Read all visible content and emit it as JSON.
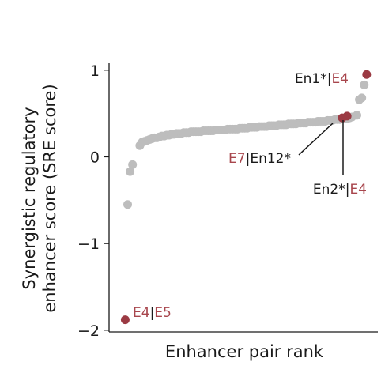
{
  "chart_data": {
    "type": "scatter",
    "xlabel": "Enhancer pair rank",
    "ylabel_lines": [
      "Synergistic regulatory",
      "enhancer score (SRE score)"
    ],
    "yticks": [
      1,
      0,
      -1,
      -2
    ],
    "ytick_labels": [
      "1",
      "0",
      "−1",
      "−2"
    ],
    "ylim": [
      -2.02,
      1.08
    ],
    "xlim": [
      0,
      106
    ],
    "grid": false,
    "legend": "none",
    "colors": {
      "background": "#bdbdbd",
      "highlight": "#9b3a43",
      "highlight_text": "#a8464d",
      "axis": "#1a1a1a"
    },
    "series": [
      {
        "role": "background",
        "x": [
          6,
          7,
          8,
          11,
          12,
          13,
          14,
          15,
          16,
          17,
          18,
          19,
          20,
          21,
          22,
          23,
          24,
          25,
          26,
          27,
          28,
          29,
          30,
          31,
          32,
          33,
          34,
          35,
          36,
          37,
          38,
          39,
          40,
          41,
          42,
          43,
          44,
          45,
          46,
          47,
          48,
          49,
          50,
          51,
          52,
          53,
          54,
          55,
          56,
          57,
          58,
          59,
          60,
          61,
          62,
          63,
          64,
          65,
          66,
          67,
          68,
          69,
          70,
          71,
          72,
          73,
          74,
          75,
          76,
          77,
          78,
          79,
          80,
          81,
          82,
          83,
          84,
          85,
          86,
          87,
          88,
          89,
          90,
          91,
          92,
          93,
          94,
          95,
          96,
          97,
          98,
          100,
          101,
          102,
          103
        ],
        "y": [
          -0.55,
          -0.17,
          -0.09,
          0.13,
          0.17,
          0.18,
          0.19,
          0.2,
          0.21,
          0.22,
          0.22,
          0.23,
          0.24,
          0.24,
          0.25,
          0.25,
          0.26,
          0.26,
          0.27,
          0.27,
          0.27,
          0.28,
          0.28,
          0.28,
          0.29,
          0.29,
          0.29,
          0.29,
          0.29,
          0.3,
          0.3,
          0.3,
          0.3,
          0.3,
          0.31,
          0.31,
          0.31,
          0.31,
          0.31,
          0.32,
          0.32,
          0.32,
          0.32,
          0.32,
          0.33,
          0.33,
          0.33,
          0.33,
          0.34,
          0.34,
          0.34,
          0.34,
          0.35,
          0.35,
          0.35,
          0.35,
          0.36,
          0.36,
          0.36,
          0.36,
          0.37,
          0.37,
          0.37,
          0.37,
          0.38,
          0.38,
          0.38,
          0.38,
          0.39,
          0.39,
          0.39,
          0.39,
          0.4,
          0.4,
          0.4,
          0.4,
          0.41,
          0.41,
          0.41,
          0.41,
          0.42,
          0.42,
          0.42,
          0.43,
          0.43,
          0.43,
          0.44,
          0.44,
          0.44,
          0.45,
          0.46,
          0.48,
          0.66,
          0.68,
          0.83
        ]
      },
      {
        "role": "highlight",
        "x": [
          5,
          94,
          96,
          104
        ],
        "y": [
          -1.88,
          0.45,
          0.47,
          0.95
        ]
      }
    ],
    "annotations": [
      {
        "parts": [
          "E4",
          "|",
          "E5"
        ],
        "colors": [
          "highlight",
          "dark",
          "highlight"
        ]
      },
      {
        "parts": [
          "En1*",
          "|",
          "E4"
        ],
        "colors": [
          "dark",
          "dark",
          "highlight"
        ]
      },
      {
        "parts": [
          "E7",
          "|",
          "En12*"
        ],
        "colors": [
          "highlight",
          "dark",
          "dark"
        ]
      },
      {
        "parts": [
          "En2*",
          "|",
          "E4"
        ],
        "colors": [
          "dark",
          "dark",
          "highlight"
        ]
      }
    ]
  }
}
